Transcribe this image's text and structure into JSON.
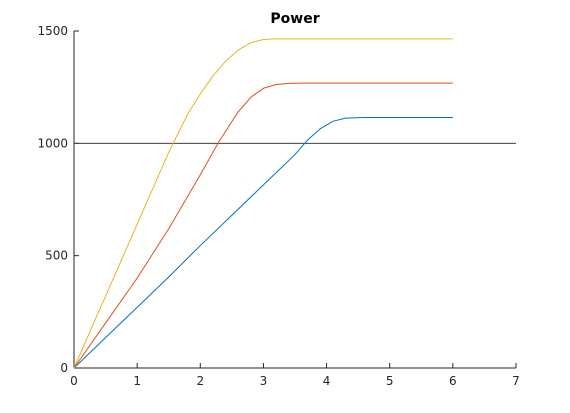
{
  "chart_data": {
    "type": "line",
    "title": "Power",
    "xlabel": "",
    "ylabel": "",
    "xlim": [
      0,
      7
    ],
    "ylim": [
      0,
      1500
    ],
    "x_ticks": [
      0,
      1,
      2,
      3,
      4,
      5,
      6,
      7
    ],
    "y_ticks": [
      0,
      500,
      1000,
      1500
    ],
    "x_tick_labels": [
      "0",
      "1",
      "2",
      "3",
      "4",
      "5",
      "6",
      "7"
    ],
    "y_tick_labels": [
      "0",
      "500",
      "1000",
      "1500"
    ],
    "grid": false,
    "box": "left-bottom axes only",
    "reference_line": {
      "y": 1000,
      "color": "#404040"
    },
    "series": [
      {
        "color": "#0072BD",
        "x": [
          0,
          0.5,
          1.0,
          1.5,
          2.0,
          2.5,
          3.0,
          3.5,
          3.7,
          3.9,
          4.1,
          4.3,
          4.6,
          5.0,
          5.5,
          6.0
        ],
        "y": [
          0,
          135,
          270,
          405,
          545,
          680,
          815,
          950,
          1015,
          1065,
          1098,
          1112,
          1115,
          1115,
          1115,
          1115
        ]
      },
      {
        "color": "#D95319",
        "x": [
          0,
          0.5,
          1.0,
          1.5,
          2.0,
          2.3,
          2.6,
          2.8,
          3.0,
          3.2,
          3.4,
          3.6,
          4.0,
          5.0,
          6.0
        ],
        "y": [
          0,
          200,
          400,
          620,
          860,
          1010,
          1140,
          1205,
          1245,
          1262,
          1267,
          1268,
          1268,
          1268,
          1268
        ]
      },
      {
        "color": "#EDB120",
        "x": [
          0,
          0.5,
          1.0,
          1.5,
          1.8,
          2.0,
          2.2,
          2.4,
          2.6,
          2.8,
          3.0,
          3.2,
          3.5,
          4.0,
          5.0,
          6.0
        ],
        "y": [
          0,
          320,
          640,
          960,
          1130,
          1220,
          1300,
          1365,
          1415,
          1448,
          1462,
          1465,
          1465,
          1465,
          1465,
          1465
        ]
      }
    ]
  }
}
